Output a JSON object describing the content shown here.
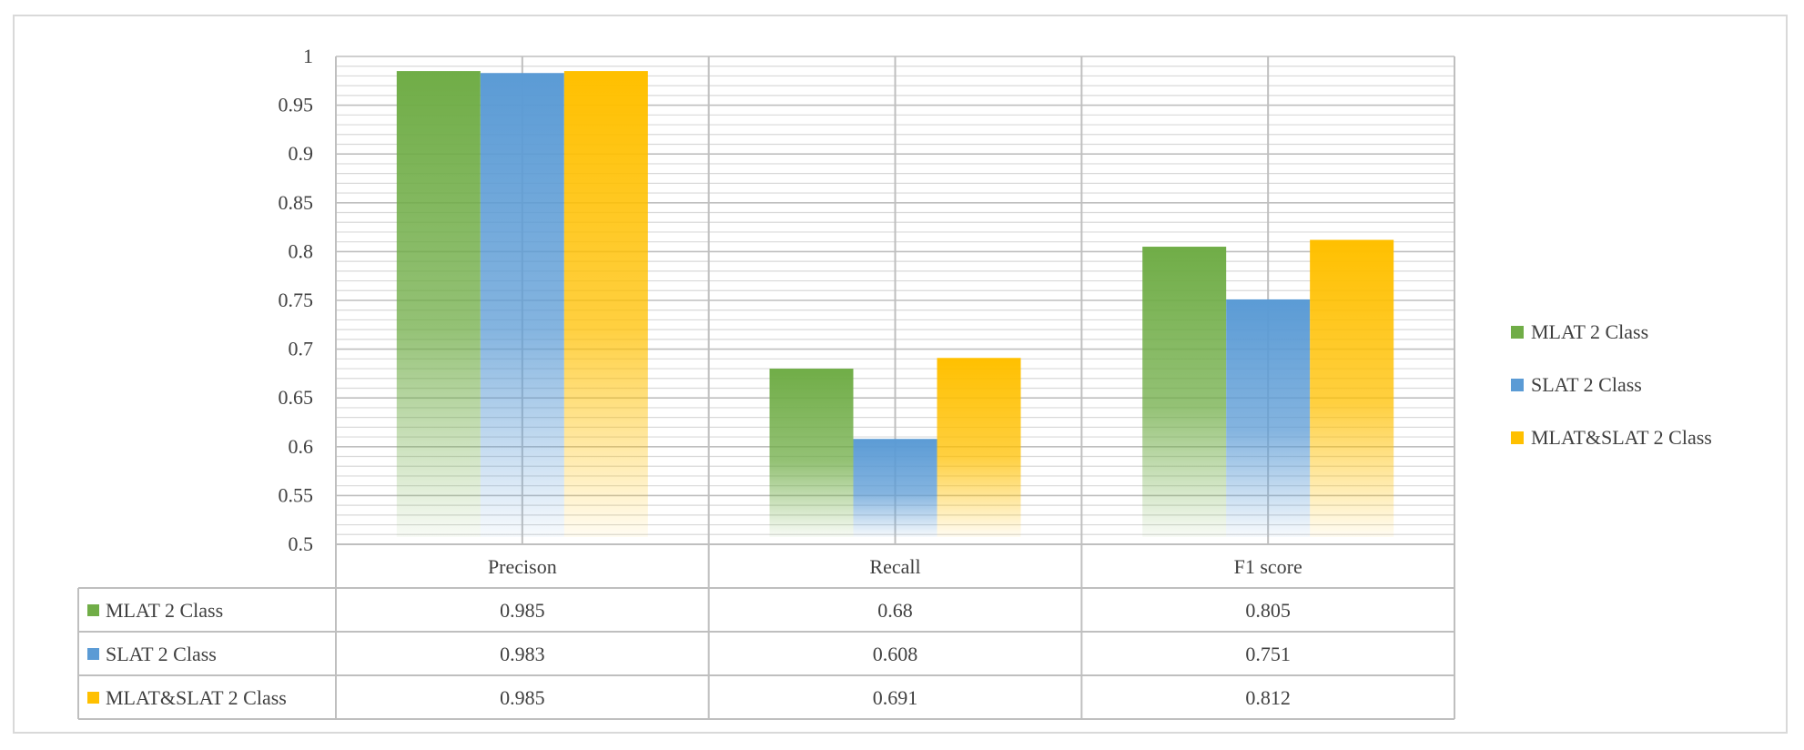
{
  "chart_data": {
    "type": "bar",
    "categories": [
      "Precison",
      "Recall",
      "F1 score"
    ],
    "series": [
      {
        "name": "MLAT 2 Class",
        "values": [
          0.985,
          0.68,
          0.805
        ],
        "color": "#70ad47"
      },
      {
        "name": "SLAT 2 Class",
        "values": [
          0.983,
          0.608,
          0.751
        ],
        "color": "#5b9bd5"
      },
      {
        "name": "MLAT&SLAT 2 Class",
        "values": [
          0.985,
          0.691,
          0.812
        ],
        "color": "#ffc000"
      }
    ],
    "y_ticks": [
      "0.5",
      "0.55",
      "0.6",
      "0.65",
      "0.7",
      "0.75",
      "0.8",
      "0.85",
      "0.9",
      "0.95",
      "1"
    ],
    "table_values": [
      [
        "0.985",
        "0.68",
        "0.805"
      ],
      [
        "0.983",
        "0.608",
        "0.751"
      ],
      [
        "0.985",
        "0.691",
        "0.812"
      ]
    ],
    "ylim": [
      0.5,
      1
    ],
    "grid": true,
    "legend_position": "right",
    "data_table": true
  }
}
